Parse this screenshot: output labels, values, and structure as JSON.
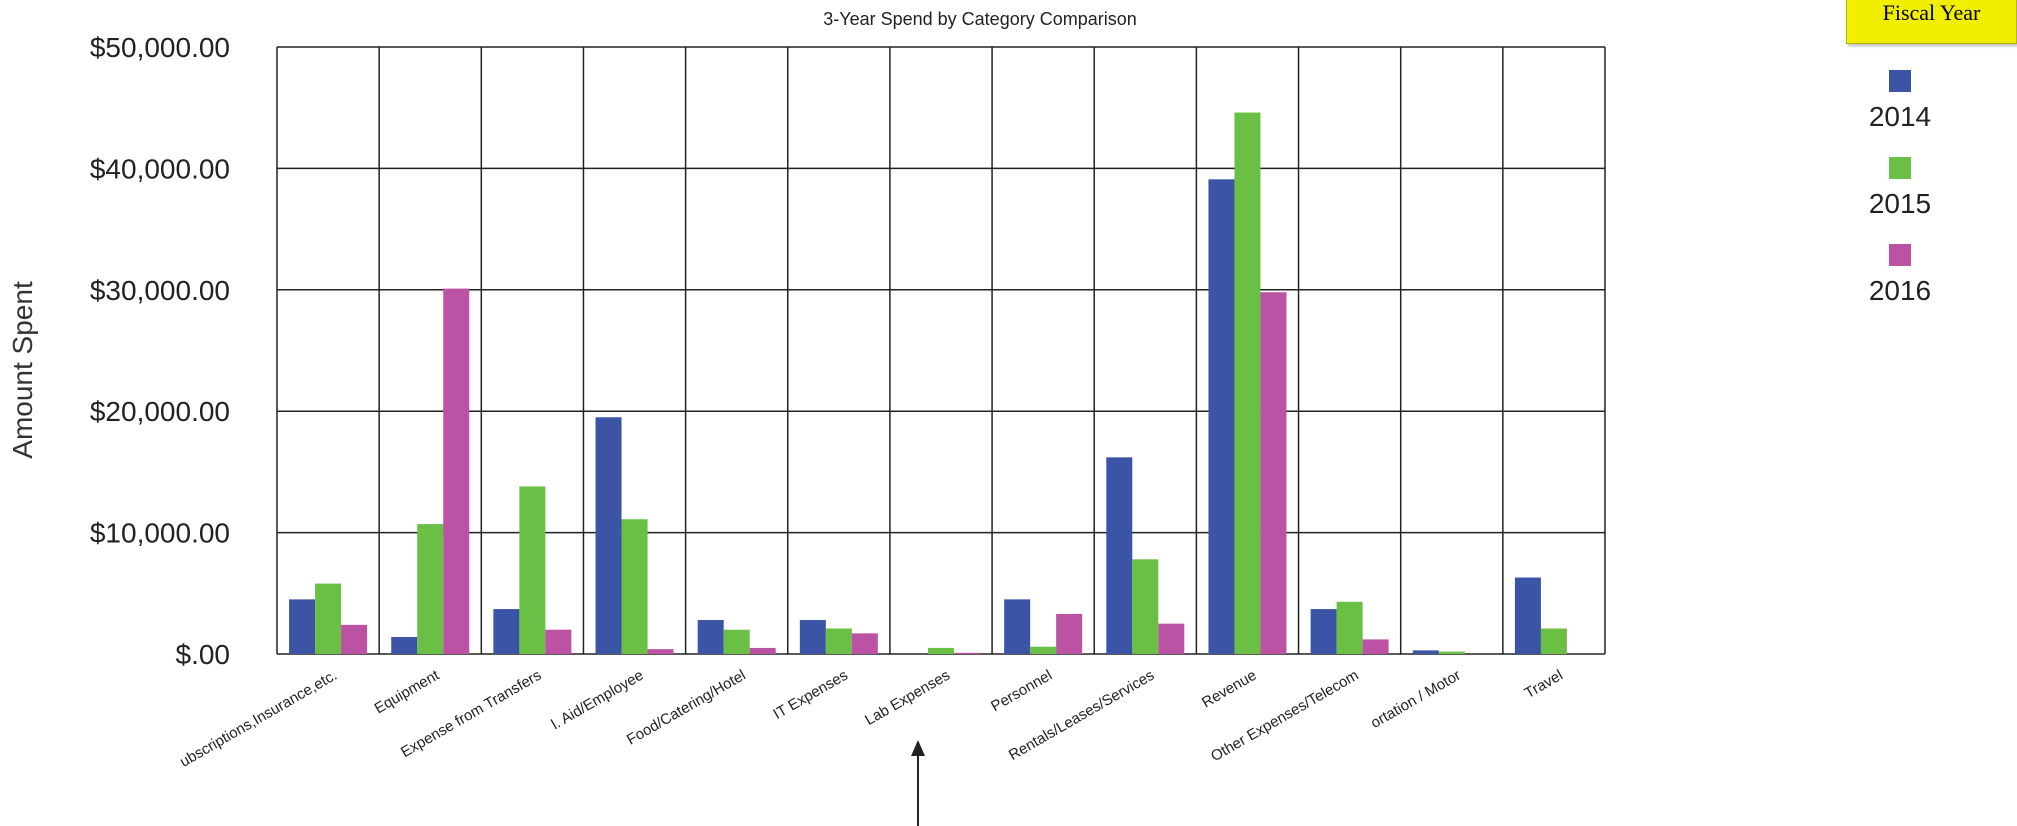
{
  "legend": {
    "title": "Fiscal Year",
    "items": [
      {
        "label": "2014",
        "color": "#3b54a6"
      },
      {
        "label": "2015",
        "color": "#6abf45"
      },
      {
        "label": "2016",
        "color": "#bc52a3"
      }
    ]
  },
  "chart_data": {
    "type": "bar",
    "title": "3-Year Spend by Category Comparison",
    "xlabel": "",
    "ylabel": "Amount Spent",
    "ylim": [
      0,
      50000
    ],
    "yticks": [
      "$.00",
      "$10,000.00",
      "$20,000.00",
      "$30,000.00",
      "$40,000.00",
      "$50,000.00"
    ],
    "grid": true,
    "legend_position": "top-right",
    "categories": [
      "ubscriptions,Insurance,etc.",
      "Equipment",
      "Expense from Transfers",
      "l. Aid/Employee",
      "Food/Catering/Hotel",
      "IT Expenses",
      "Lab Expenses",
      "Personnel",
      "Rentals/Leases/Services",
      "Revenue",
      "Other  Expenses/Telecom",
      "ortation / Motor",
      "Travel"
    ],
    "series": [
      {
        "name": "2014",
        "color": "#3b54a6",
        "values": [
          4500,
          1400,
          3700,
          19500,
          2800,
          2800,
          0,
          4500,
          16200,
          39100,
          3700,
          300,
          6300
        ]
      },
      {
        "name": "2015",
        "color": "#6abf45",
        "values": [
          5800,
          10700,
          13800,
          11100,
          2000,
          2100,
          500,
          600,
          7800,
          44600,
          4300,
          200,
          2100
        ]
      },
      {
        "name": "2016",
        "color": "#bc52a3",
        "values": [
          2400,
          30100,
          2000,
          400,
          500,
          1700,
          100,
          3300,
          2500,
          29800,
          1200,
          0,
          0
        ]
      }
    ]
  }
}
